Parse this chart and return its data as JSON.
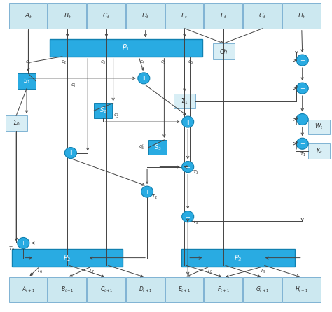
{
  "fig_width": 4.74,
  "fig_height": 4.46,
  "dpi": 100,
  "bg_color": "#ffffff",
  "top_labels": [
    "A_t",
    "B_t",
    "C_t",
    "D_t",
    "E_t",
    "F_t",
    "G_t",
    "H_t"
  ],
  "bot_labels": [
    "A_{t+1}",
    "B_{t+1}",
    "C_{t+1}",
    "D_{t+1}",
    "E_{t+1}",
    "F_{t+1}",
    "G_{t+1}",
    "H_{t+1}"
  ],
  "cell_bg": "#cce8f0",
  "cell_border": "#7fb3d3",
  "blue_box_bg": "#29abe2",
  "blue_box_border": "#1080b0",
  "gray_box_bg": "#d8eef5",
  "gray_box_border": "#7fb3d3",
  "circle_fill": "#29abe2",
  "circle_border": "#1080b0",
  "arrow_color": "#444444",
  "text_color_white": "#ffffff",
  "text_color_dark": "#333333"
}
